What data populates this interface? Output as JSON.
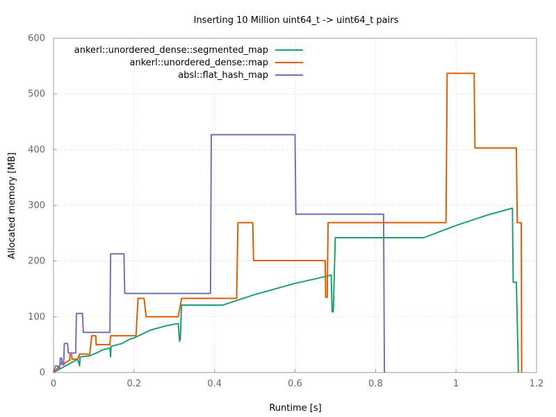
{
  "chart_data": {
    "type": "line",
    "title": "Inserting 10 Million uint64_t -> uint64_t pairs",
    "xlabel": "Runtime [s]",
    "ylabel": "Allocated memory [MB]",
    "xlim": [
      0,
      1.2
    ],
    "ylim": [
      0,
      600
    ],
    "xticks": [
      0,
      0.2,
      0.4,
      0.6,
      0.8,
      1,
      1.2
    ],
    "xtick_labels": [
      "0",
      "0.2",
      "0.4",
      "0.6",
      "0.8",
      "1",
      "1.2"
    ],
    "yticks": [
      0,
      100,
      200,
      300,
      400,
      500,
      600
    ],
    "ytick_labels": [
      "0",
      "100",
      "200",
      "300",
      "400",
      "500",
      "600"
    ],
    "grid": true,
    "legend_position": "top-left",
    "series": [
      {
        "name": "ankerl::unordered_dense::segmented_map",
        "color": "#1b9e77",
        "points": [
          [
            0,
            0
          ],
          [
            0.01,
            4
          ],
          [
            0.02,
            8
          ],
          [
            0.03,
            12
          ],
          [
            0.04,
            16
          ],
          [
            0.05,
            20
          ],
          [
            0.06,
            24
          ],
          [
            0.065,
            12
          ],
          [
            0.066,
            28
          ],
          [
            0.09,
            30
          ],
          [
            0.11,
            36
          ],
          [
            0.12,
            40
          ],
          [
            0.14,
            44
          ],
          [
            0.142,
            28
          ],
          [
            0.143,
            47
          ],
          [
            0.17,
            52
          ],
          [
            0.19,
            60
          ],
          [
            0.2,
            62
          ],
          [
            0.24,
            76
          ],
          [
            0.28,
            84
          ],
          [
            0.31,
            88
          ],
          [
            0.313,
            56
          ],
          [
            0.315,
            60
          ],
          [
            0.318,
            121
          ],
          [
            0.35,
            121
          ],
          [
            0.38,
            121
          ],
          [
            0.42,
            121
          ],
          [
            0.45,
            128
          ],
          [
            0.5,
            140
          ],
          [
            0.55,
            150
          ],
          [
            0.6,
            160
          ],
          [
            0.65,
            168
          ],
          [
            0.69,
            175
          ],
          [
            0.692,
            109
          ],
          [
            0.695,
            109
          ],
          [
            0.7,
            242
          ],
          [
            0.8,
            242
          ],
          [
            0.92,
            242
          ],
          [
            1.0,
            264
          ],
          [
            1.08,
            283
          ],
          [
            1.14,
            295
          ],
          [
            1.142,
            162
          ],
          [
            1.15,
            162
          ],
          [
            1.155,
            0
          ]
        ]
      },
      {
        "name": "ankerl::unordered_dense::map",
        "color": "#d95f02",
        "points": [
          [
            0,
            0
          ],
          [
            0.005,
            4
          ],
          [
            0.01,
            8
          ],
          [
            0.015,
            12
          ],
          [
            0.02,
            18
          ],
          [
            0.025,
            14
          ],
          [
            0.03,
            18
          ],
          [
            0.04,
            22
          ],
          [
            0.041,
            32
          ],
          [
            0.045,
            32
          ],
          [
            0.046,
            24
          ],
          [
            0.06,
            24
          ],
          [
            0.065,
            33
          ],
          [
            0.09,
            33
          ],
          [
            0.095,
            66
          ],
          [
            0.105,
            66
          ],
          [
            0.106,
            50
          ],
          [
            0.14,
            50
          ],
          [
            0.142,
            66
          ],
          [
            0.205,
            66
          ],
          [
            0.21,
            133
          ],
          [
            0.225,
            133
          ],
          [
            0.23,
            100
          ],
          [
            0.31,
            100
          ],
          [
            0.318,
            133
          ],
          [
            0.455,
            133
          ],
          [
            0.458,
            269
          ],
          [
            0.495,
            269
          ],
          [
            0.497,
            201
          ],
          [
            0.675,
            201
          ],
          [
            0.676,
            135
          ],
          [
            0.68,
            135
          ],
          [
            0.682,
            269
          ],
          [
            0.975,
            269
          ],
          [
            0.978,
            537
          ],
          [
            1.045,
            537
          ],
          [
            1.047,
            403
          ],
          [
            1.15,
            403
          ],
          [
            1.152,
            269
          ],
          [
            1.162,
            269
          ],
          [
            1.163,
            0
          ]
        ]
      },
      {
        "name": "absl::flat_hash_map",
        "color": "#7570b3",
        "points": [
          [
            0,
            0
          ],
          [
            0.005,
            12
          ],
          [
            0.01,
            12
          ],
          [
            0.012,
            7
          ],
          [
            0.015,
            7
          ],
          [
            0.017,
            26
          ],
          [
            0.02,
            26
          ],
          [
            0.022,
            14
          ],
          [
            0.025,
            14
          ],
          [
            0.027,
            52
          ],
          [
            0.035,
            52
          ],
          [
            0.037,
            35
          ],
          [
            0.055,
            35
          ],
          [
            0.057,
            106
          ],
          [
            0.072,
            106
          ],
          [
            0.074,
            72
          ],
          [
            0.14,
            72
          ],
          [
            0.142,
            213
          ],
          [
            0.175,
            213
          ],
          [
            0.177,
            142
          ],
          [
            0.39,
            142
          ],
          [
            0.392,
            427
          ],
          [
            0.6,
            427
          ],
          [
            0.602,
            284
          ],
          [
            0.82,
            284
          ],
          [
            0.822,
            0
          ]
        ]
      }
    ]
  }
}
